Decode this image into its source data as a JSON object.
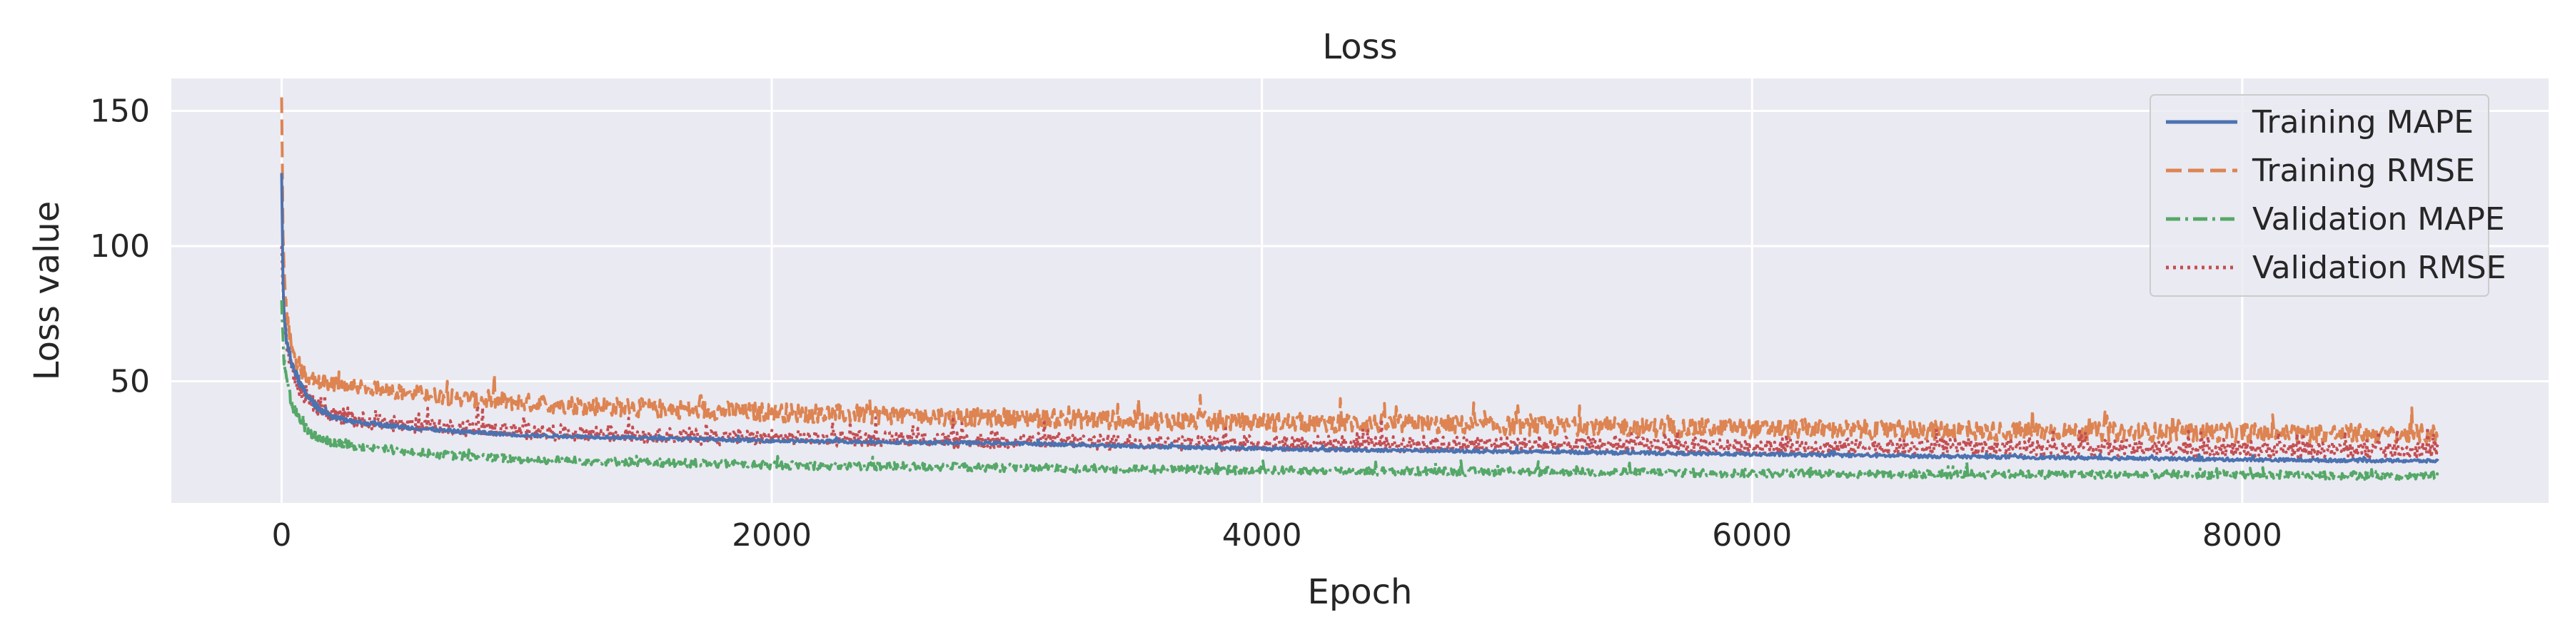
{
  "chart_data": {
    "type": "line",
    "title": "Loss",
    "xlabel": "Epoch",
    "ylabel": "Loss value",
    "xlim": [
      -450,
      9250
    ],
    "ylim": [
      5,
      162
    ],
    "xticks": [
      0,
      2000,
      4000,
      6000,
      8000
    ],
    "yticks": [
      50,
      100,
      150
    ],
    "grid": true,
    "legend_position": "top-right",
    "background": "#eaeaf2",
    "series": [
      {
        "name": "Training MAPE",
        "color": "#4c72b0",
        "dash": "solid",
        "x": [
          0,
          5,
          10,
          20,
          40,
          70,
          100,
          150,
          200,
          300,
          500,
          700,
          1000,
          1500,
          2000,
          2500,
          3000,
          3500,
          4000,
          5000,
          6000,
          7000,
          8000,
          8800
        ],
        "y": [
          127,
          88,
          75,
          65,
          57,
          50,
          45,
          40,
          37,
          35,
          33,
          31.5,
          30,
          29,
          28,
          27.5,
          27,
          26,
          25,
          24,
          23,
          22,
          21,
          20.5
        ],
        "noise": [
          0,
          1.5,
          1.5,
          1.5,
          1.5,
          1.5,
          1.2,
          1.0,
          0.8,
          0.8,
          0.7,
          0.7,
          0.6,
          0.6,
          0.6,
          0.6,
          0.6,
          0.6,
          0.6,
          0.6,
          0.6,
          0.6,
          0.6,
          0.6
        ]
      },
      {
        "name": "Training RMSE",
        "color": "#dd8452",
        "dash": "dashed",
        "x": [
          0,
          5,
          10,
          20,
          40,
          70,
          100,
          150,
          200,
          300,
          500,
          700,
          1000,
          1500,
          2000,
          2500,
          3000,
          3500,
          4000,
          5000,
          6000,
          7000,
          8000,
          8800
        ],
        "y": [
          155,
          110,
          90,
          75,
          62,
          55,
          52,
          50,
          49,
          48,
          46,
          44,
          42,
          40,
          38.5,
          37.5,
          36.5,
          35.5,
          35,
          33.5,
          32.5,
          31.5,
          31,
          30.5
        ],
        "noise": [
          0,
          3,
          3,
          3,
          3,
          2.5,
          2.5,
          2.5,
          2.5,
          2.5,
          3,
          3,
          3.5,
          3.5,
          3.5,
          3.5,
          3.5,
          3.5,
          3.5,
          3.5,
          3.5,
          3.5,
          3.5,
          3.5
        ]
      },
      {
        "name": "Validation MAPE",
        "color": "#55a868",
        "dash": "dashdot",
        "x": [
          0,
          5,
          10,
          20,
          40,
          70,
          100,
          150,
          200,
          300,
          500,
          700,
          1000,
          1500,
          2000,
          2500,
          3000,
          3500,
          4000,
          5000,
          6000,
          7000,
          8000,
          8800
        ],
        "y": [
          80,
          65,
          58,
          50,
          42,
          36,
          32,
          29,
          27.5,
          26,
          24,
          22.5,
          21,
          20,
          19,
          18.5,
          18,
          17.5,
          17,
          16.5,
          16,
          15.5,
          15.5,
          15
        ],
        "noise": [
          0,
          2,
          2,
          2,
          2,
          1.8,
          1.6,
          1.5,
          1.5,
          1.5,
          1.5,
          1.5,
          1.5,
          1.5,
          1.5,
          1.5,
          1.5,
          1.5,
          1.5,
          1.5,
          1.5,
          1.5,
          1.5,
          1.5
        ]
      },
      {
        "name": "Validation RMSE",
        "color": "#c44e52",
        "dash": "dotted",
        "x": [
          0,
          5,
          10,
          20,
          40,
          70,
          100,
          150,
          200,
          300,
          500,
          700,
          1000,
          1500,
          2000,
          2500,
          3000,
          3500,
          4000,
          5000,
          6000,
          7000,
          8000,
          8800
        ],
        "y": [
          100,
          85,
          75,
          65,
          55,
          48,
          44,
          40,
          38,
          36,
          34,
          33,
          31.5,
          30,
          29,
          28.5,
          28,
          27.5,
          27,
          26.5,
          26,
          25.5,
          25,
          24.5
        ],
        "noise": [
          0,
          3,
          3,
          3,
          3,
          3,
          3,
          3,
          3,
          3,
          3,
          3,
          3,
          3,
          3,
          3,
          3,
          3,
          3,
          3,
          3,
          3,
          3,
          3
        ]
      }
    ]
  }
}
